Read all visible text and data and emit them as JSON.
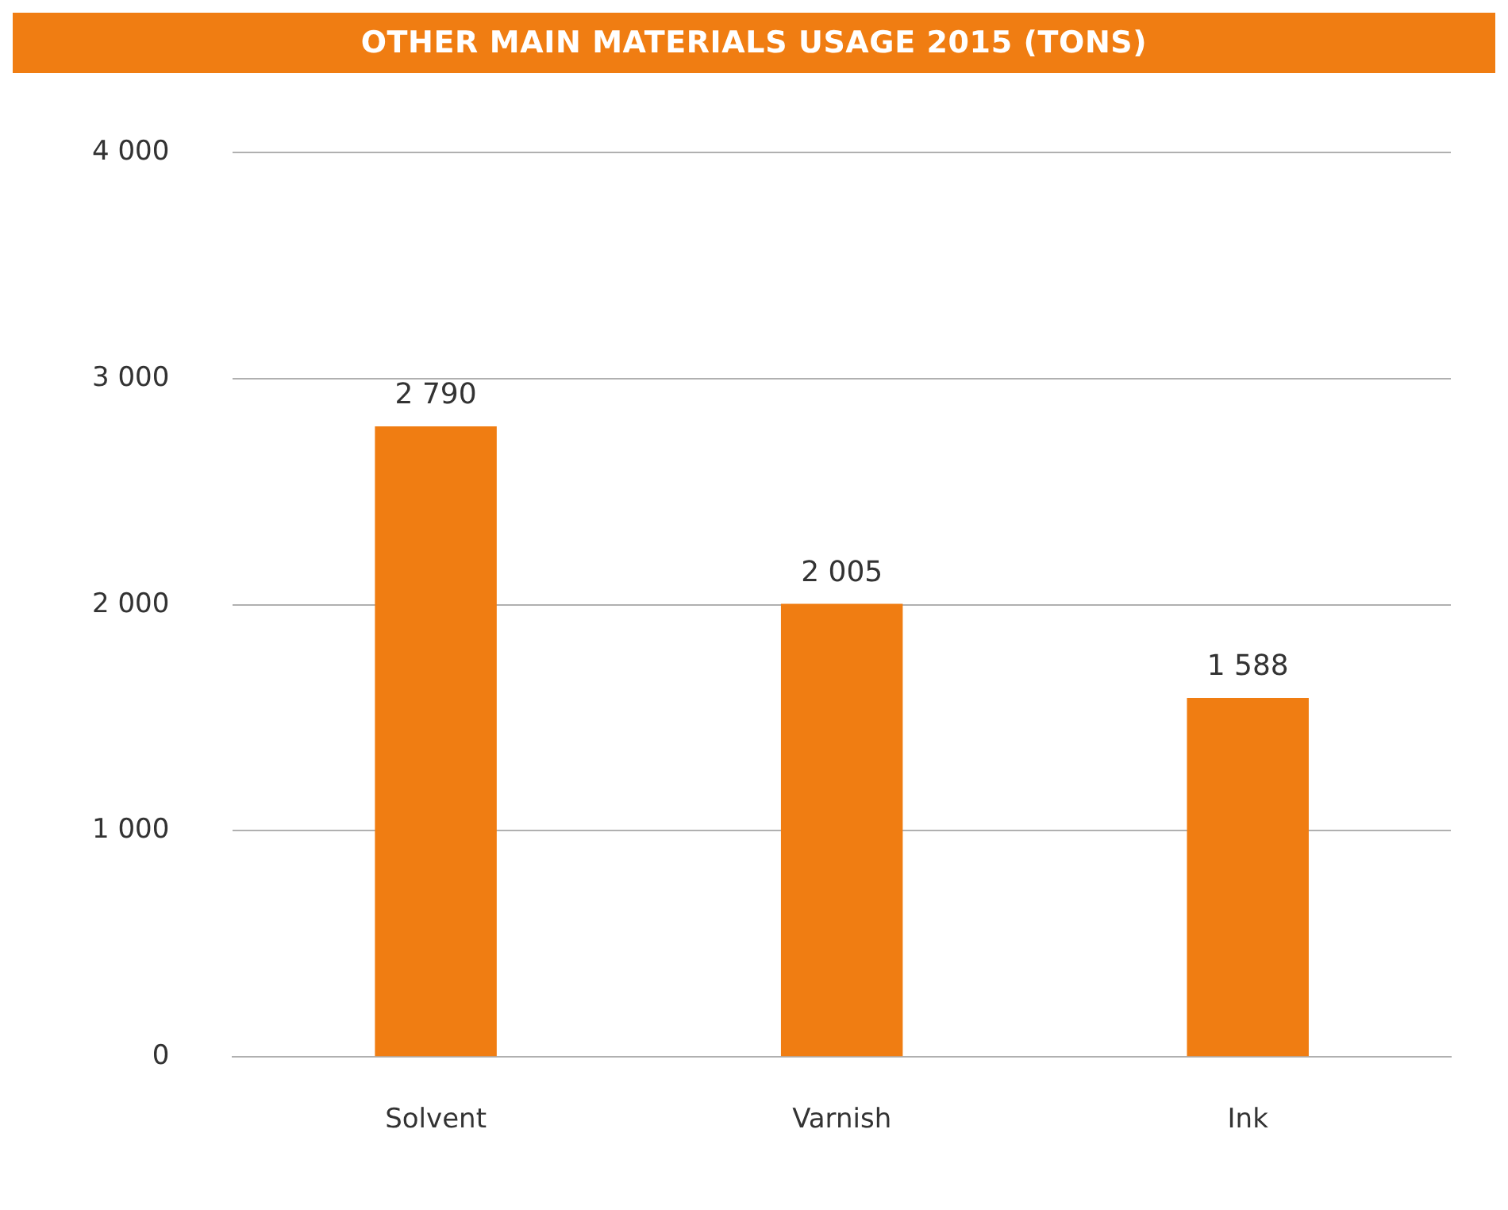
{
  "chart_data": {
    "type": "bar",
    "title": "OTHER MAIN MATERIALS USAGE 2015 (TONS)",
    "categories": [
      "Solvent",
      "Varnish",
      "Ink"
    ],
    "values": [
      2790,
      2005,
      1588
    ],
    "color": "#f07d12",
    "value_labels": [
      "2 790",
      "2 005",
      "1 588"
    ],
    "ylim": [
      0,
      4000
    ],
    "yticks": [
      {
        "value": 0,
        "label": "0"
      },
      {
        "value": 1000,
        "label": "1 000"
      },
      {
        "value": 2000,
        "label": "2 000"
      },
      {
        "value": 3000,
        "label": "3 000"
      },
      {
        "value": 4000,
        "label": "4 000"
      }
    ],
    "grid": "y",
    "legend": false
  }
}
